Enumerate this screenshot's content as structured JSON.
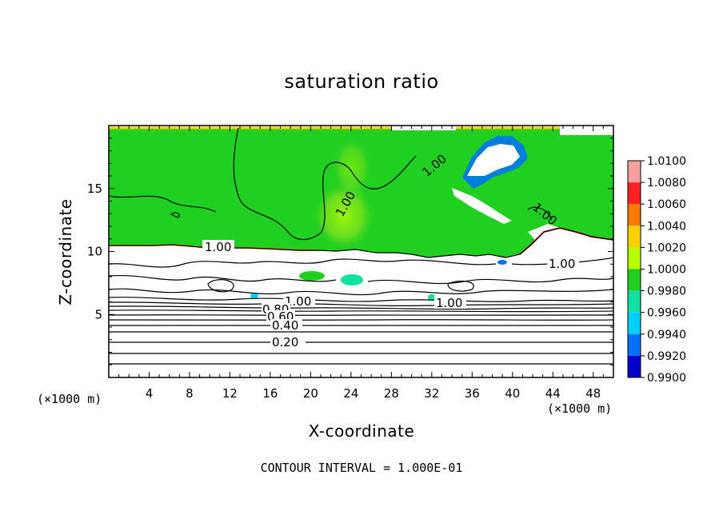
{
  "chart_data": {
    "type": "heatmap",
    "title": "saturation ratio",
    "xlabel": "X-coordinate",
    "ylabel": "Z-coordinate",
    "x_unit_label": "(×1000 m)",
    "y_unit_label": "(×1000 m)",
    "xlim": [
      0,
      50
    ],
    "ylim": [
      0,
      20
    ],
    "x_ticks": [
      4,
      8,
      12,
      16,
      20,
      24,
      28,
      32,
      36,
      40,
      44,
      48
    ],
    "y_ticks": [
      5,
      10,
      15
    ],
    "colorbar": {
      "levels": [
        "1.0100",
        "1.0080",
        "1.0060",
        "1.0040",
        "1.0020",
        "1.0000",
        "0.9980",
        "0.9960",
        "0.9940",
        "0.9920",
        "0.9900"
      ],
      "colors": [
        "#f6a0a0",
        "#ff2020",
        "#ff7a00",
        "#ffd000",
        "#b8ff00",
        "#20d020",
        "#12e0a0",
        "#00d0ff",
        "#0070ff",
        "#0000d0",
        "#5a00a0"
      ]
    },
    "contour_labels": [
      "1.00",
      "0.20",
      "0.40",
      "0.60",
      "0.80"
    ],
    "contour_interval_text": "CONTOUR INTERVAL = 1.000E-01",
    "grid": false
  }
}
